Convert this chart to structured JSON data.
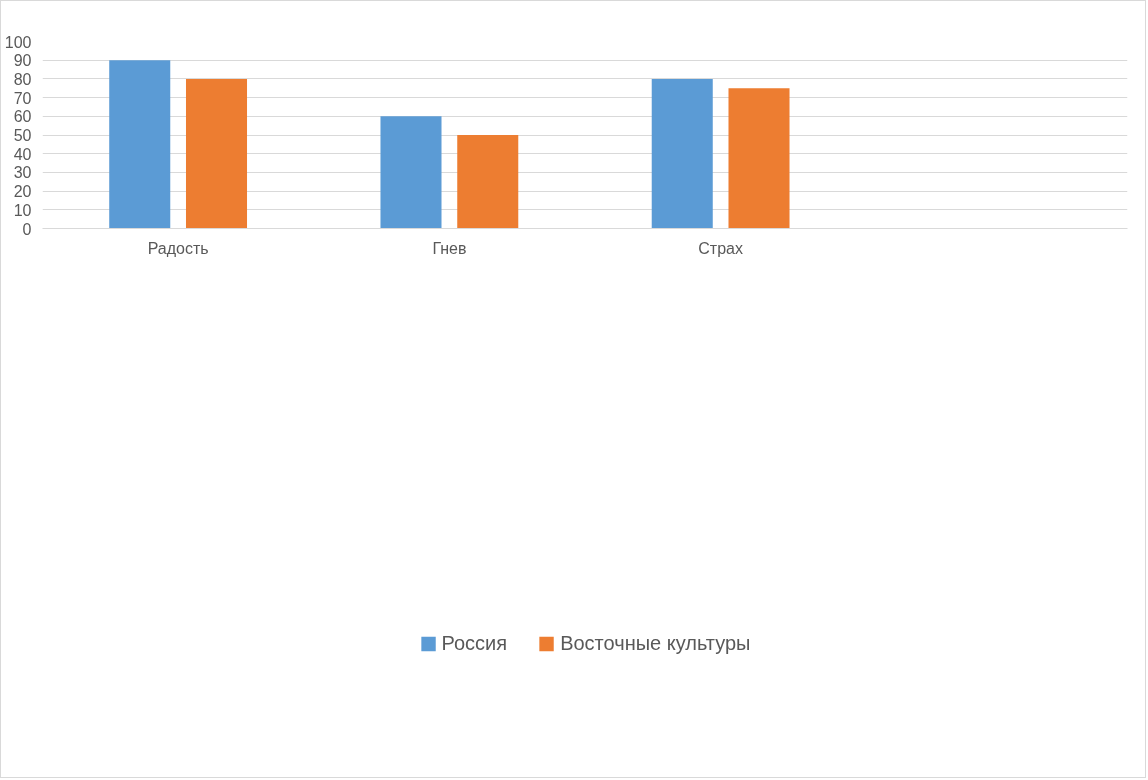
{
  "chart_data": {
    "type": "bar",
    "categories": [
      "Радость",
      "Гнев",
      "Страх",
      null
    ],
    "series": [
      {
        "name": "Россия",
        "color": "#5b9bd5",
        "values": [
          90,
          60,
          80,
          null
        ]
      },
      {
        "name": "Восточные культуры",
        "color": "#ed7d31",
        "values": [
          80,
          50,
          75,
          null
        ]
      }
    ],
    "ylim": [
      0,
      100
    ],
    "yticks": [
      0,
      10,
      20,
      30,
      40,
      50,
      60,
      70,
      80,
      90,
      100
    ],
    "grid": "y",
    "legend": "bottom"
  }
}
